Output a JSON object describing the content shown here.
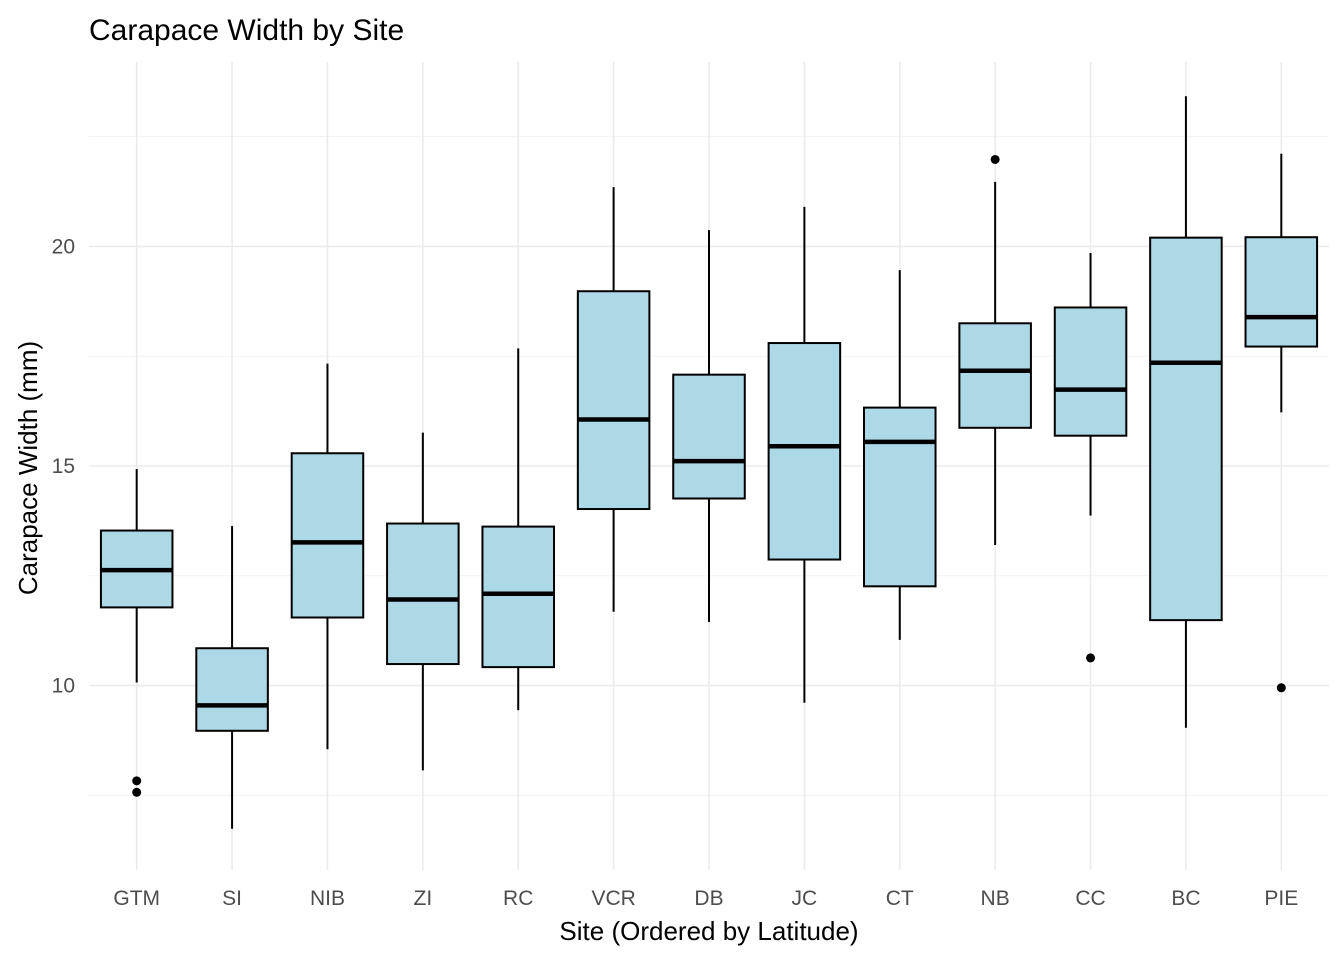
{
  "chart_data": {
    "type": "boxplot",
    "title": "Carapace Width by Site",
    "xlabel": "Site (Ordered by Latitude)",
    "ylabel": "Carapace Width (mm)",
    "ylim": [
      5.8,
      24.2
    ],
    "yticks": [
      10,
      15,
      20
    ],
    "grid": true,
    "categories": [
      "GTM",
      "SI",
      "NIB",
      "ZI",
      "RC",
      "VCR",
      "DB",
      "JC",
      "CT",
      "NB",
      "CC",
      "BC",
      "PIE"
    ],
    "boxes": [
      {
        "site": "GTM",
        "min": 10.07,
        "q1": 11.78,
        "median": 12.63,
        "q3": 13.53,
        "max": 14.93,
        "outliers": [
          7.83,
          7.57
        ]
      },
      {
        "site": "SI",
        "min": 6.74,
        "q1": 8.97,
        "median": 9.55,
        "q3": 10.85,
        "max": 13.63,
        "outliers": []
      },
      {
        "site": "NIB",
        "min": 8.55,
        "q1": 11.55,
        "median": 13.26,
        "q3": 15.29,
        "max": 17.33,
        "outliers": []
      },
      {
        "site": "ZI",
        "min": 8.07,
        "q1": 10.49,
        "median": 11.96,
        "q3": 13.69,
        "max": 15.76,
        "outliers": []
      },
      {
        "site": "RC",
        "min": 9.44,
        "q1": 10.42,
        "median": 12.09,
        "q3": 13.62,
        "max": 17.68,
        "outliers": []
      },
      {
        "site": "VCR",
        "min": 11.68,
        "q1": 14.02,
        "median": 16.06,
        "q3": 18.98,
        "max": 21.35,
        "outliers": []
      },
      {
        "site": "DB",
        "min": 11.45,
        "q1": 14.26,
        "median": 15.11,
        "q3": 17.08,
        "max": 20.37,
        "outliers": []
      },
      {
        "site": "JC",
        "min": 9.61,
        "q1": 12.87,
        "median": 15.45,
        "q3": 17.8,
        "max": 20.9,
        "outliers": []
      },
      {
        "site": "CT",
        "min": 11.04,
        "q1": 12.26,
        "median": 15.55,
        "q3": 16.33,
        "max": 19.46,
        "outliers": []
      },
      {
        "site": "NB",
        "min": 13.2,
        "q1": 15.87,
        "median": 17.17,
        "q3": 18.25,
        "max": 21.47,
        "outliers": [
          21.98
        ]
      },
      {
        "site": "CC",
        "min": 13.87,
        "q1": 15.69,
        "median": 16.74,
        "q3": 18.61,
        "max": 19.85,
        "outliers": [
          10.63
        ]
      },
      {
        "site": "BC",
        "min": 9.04,
        "q1": 11.49,
        "median": 17.35,
        "q3": 20.2,
        "max": 23.42,
        "outliers": []
      },
      {
        "site": "PIE",
        "min": 16.22,
        "q1": 17.72,
        "median": 18.39,
        "q3": 20.21,
        "max": 22.11,
        "outliers": [
          9.95
        ]
      }
    ],
    "colors": {
      "box_fill": "#add8e6",
      "box_stroke": "#000000",
      "grid": "#ebebeb",
      "tick_text": "#4d4d4d"
    }
  }
}
